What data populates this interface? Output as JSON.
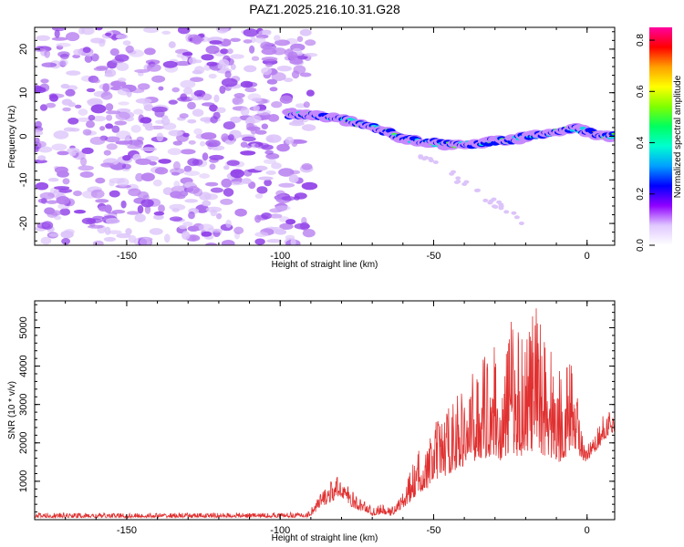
{
  "title": "PAZ1.2025.216.10.31.G28",
  "colors": {
    "snr_line": "#e03030",
    "noise_blob": "#9040e8",
    "axis": "#000000"
  },
  "chart_data": [
    {
      "type": "heatmap",
      "xlabel": "Height of straight line (km)",
      "ylabel": "Frequency (Hz)",
      "xlim": [
        -180,
        9
      ],
      "ylim": [
        -25,
        25
      ],
      "xticks": [
        -150,
        -100,
        -50,
        0
      ],
      "yticks": [
        -20,
        -10,
        0,
        10,
        20
      ],
      "grid": false,
      "noise_region": {
        "x_from": -180,
        "x_to": -90,
        "description_level": 0.15
      },
      "signal_ridge": {
        "x": [
          -97,
          -90,
          -85,
          -80,
          -75,
          -70,
          -65,
          -60,
          -55,
          -50,
          -45,
          -40,
          -35,
          -30,
          -25,
          -20,
          -15,
          -10,
          -5,
          0,
          5,
          9
        ],
        "y": [
          5,
          5,
          4.5,
          4,
          3,
          2,
          1,
          -0.5,
          -1,
          -1.5,
          -2,
          -2,
          -1.5,
          -1,
          -1,
          0,
          0.5,
          1,
          2,
          1,
          0,
          0
        ]
      },
      "colorbar": {
        "label": "Normalized spectral amplitude",
        "range": [
          0,
          0.85
        ],
        "ticks": [
          0.0,
          0.2,
          0.4,
          0.6,
          0.8
        ],
        "tick_labels": [
          "0.0",
          "0.2",
          "0.4",
          "0.6",
          "0.8"
        ],
        "colormap": [
          "#ffffff",
          "#e0c8ff",
          "#9000ff",
          "#0000ff",
          "#00a0ff",
          "#00ffd0",
          "#00ff60",
          "#80ff00",
          "#ffff00",
          "#ffa000",
          "#ff0000",
          "#ff00a0"
        ]
      }
    },
    {
      "type": "line",
      "xlabel": "Height of straight line (km)",
      "ylabel": "SNR (10 * v/v)",
      "xlim": [
        -180,
        9
      ],
      "ylim": [
        0,
        5700
      ],
      "xticks": [
        -150,
        -100,
        -50,
        0
      ],
      "yticks": [
        1000,
        2000,
        3000,
        4000,
        5000
      ],
      "grid": false,
      "series": [
        {
          "envelope": {
            "x": [
              -180,
              -150,
              -100,
              -91,
              -88,
              -85,
              -82,
              -80,
              -78,
              -75,
              -72,
              -70,
              -67,
              -64,
              -60,
              -57,
              -55,
              -52,
              -50,
              -47,
              -45,
              -42,
              -40,
              -37,
              -35,
              -33,
              -30,
              -28,
              -25,
              -22,
              -20,
              -18,
              -15,
              -12,
              -10,
              -8,
              -5,
              -3,
              -1,
              2,
              5,
              7,
              9
            ],
            "y": [
              180,
              170,
              180,
              200,
              600,
              900,
              1100,
              1200,
              900,
              600,
              500,
              300,
              400,
              300,
              700,
              1400,
              1800,
              1900,
              2500,
              2800,
              3000,
              3400,
              3200,
              3900,
              4000,
              4400,
              4600,
              3000,
              5400,
              5000,
              5100,
              5500,
              5700,
              4700,
              3900,
              4200,
              4100,
              3300,
              1900,
              2100,
              2700,
              2900,
              2600
            ],
            "min": [
              50,
              50,
              60,
              60,
              200,
              400,
              500,
              600,
              400,
              250,
              200,
              100,
              150,
              100,
              300,
              500,
              700,
              800,
              1000,
              1100,
              1200,
              1300,
              1400,
              1500,
              1600,
              1600,
              1700,
              1500,
              1800,
              1600,
              1800,
              1700,
              1700,
              1600,
              1500,
              1500,
              1900,
              1800,
              1400,
              1700,
              2000,
              2200,
              2300
            ]
          }
        }
      ]
    }
  ]
}
